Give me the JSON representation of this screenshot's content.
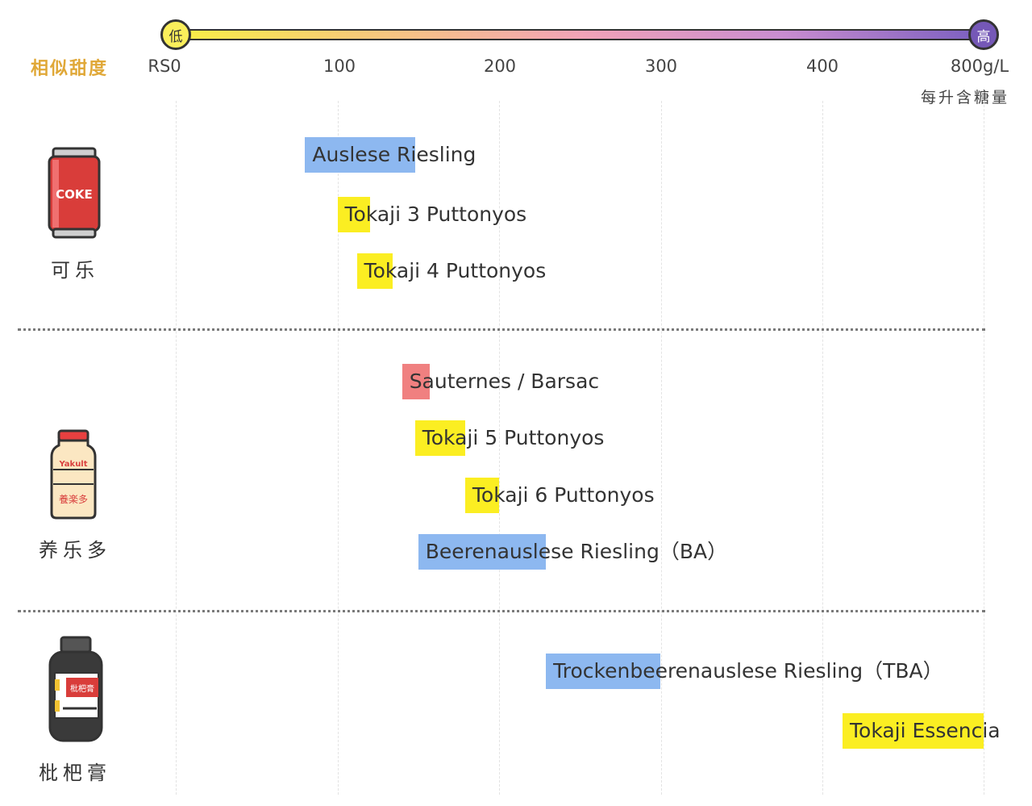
{
  "scale": {
    "low_badge": "低",
    "high_badge": "高",
    "title": "相似甜度",
    "ticks": [
      "RS0",
      "100",
      "200",
      "300",
      "400",
      "800g/L"
    ],
    "unit_label": "每升含糖量"
  },
  "colors": {
    "riesling": "#8db8f0",
    "tokaji": "#fbee22",
    "sauternes": "#f08080",
    "title_gold": "#e0a838"
  },
  "references": [
    {
      "label": "可乐",
      "icon": "coke-can-icon",
      "icon_text": "COKE"
    },
    {
      "label": "养乐多",
      "icon": "yakult-bottle-icon",
      "icon_text_top": "Yakult",
      "icon_text_bottom": "養楽多"
    },
    {
      "label": "枇杷膏",
      "icon": "syrup-bottle-icon",
      "icon_text": "枇杷膏"
    }
  ],
  "chart_data": {
    "type": "bar",
    "title": "",
    "xlabel": "每升含糖量",
    "ylabel": "相似甜度",
    "x_ticks": [
      "RS0",
      "100",
      "200",
      "300",
      "400",
      "800g/L"
    ],
    "note": "",
    "items": [
      {
        "label": "Auslese Riesling",
        "start": 80,
        "end": 148,
        "category": "riesling"
      },
      {
        "label": "Tokaji 3 Puttonyos",
        "start": 100,
        "end": 120,
        "category": "tokaji"
      },
      {
        "label": "Tokaji 4 Puttonyos",
        "start": 112,
        "end": 134,
        "category": "tokaji"
      },
      {
        "label": "Sauternes / Barsac",
        "start": 140,
        "end": 157,
        "category": "sauternes"
      },
      {
        "label": "Tokaji 5 Puttonyos",
        "start": 148,
        "end": 179,
        "category": "tokaji"
      },
      {
        "label": "Tokaji 6 Puttonyos",
        "start": 179,
        "end": 200,
        "category": "tokaji"
      },
      {
        "label": "Beerenauslese Riesling（BA）",
        "start": 150,
        "end": 229,
        "category": "riesling"
      },
      {
        "label": "Trockenbeerenauslese Riesling（TBA）",
        "start": 229,
        "end": 300,
        "category": "riesling"
      },
      {
        "label": "Tokaji Essencia",
        "start": 450,
        "end": 800,
        "category": "tokaji"
      }
    ]
  }
}
